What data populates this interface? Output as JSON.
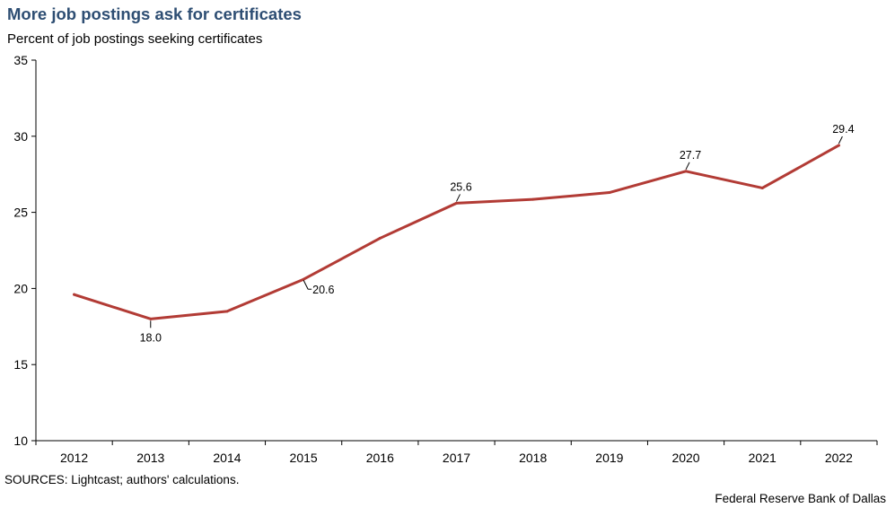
{
  "header": {
    "title": "More job postings ask for certificates",
    "subtitle": "Percent of job postings seeking certificates"
  },
  "footer": {
    "source": "SOURCES: Lightcast; authors' calculations.",
    "credit": "Federal Reserve Bank of Dallas"
  },
  "chart_data": {
    "type": "line",
    "title": "More job postings ask for certificates",
    "ylabel": "Percent of job postings seeking certificates",
    "xlabel": "",
    "categories": [
      "2012",
      "2013",
      "2014",
      "2015",
      "2016",
      "2017",
      "2018",
      "2019",
      "2020",
      "2021",
      "2022"
    ],
    "series": [
      {
        "values": [
          19.6,
          18.0,
          18.5,
          20.6,
          23.3,
          25.6,
          25.85,
          26.3,
          27.7,
          26.6,
          29.4
        ],
        "color": "#b23b35"
      }
    ],
    "ylim": [
      10,
      35
    ],
    "yticks": [
      10,
      15,
      20,
      25,
      30,
      35
    ],
    "grid": false,
    "legend": "none",
    "annotations": [
      {
        "index": 1,
        "label": "18.0",
        "position": "below"
      },
      {
        "index": 3,
        "label": "20.6",
        "position": "right"
      },
      {
        "index": 5,
        "label": "25.6",
        "position": "above"
      },
      {
        "index": 8,
        "label": "27.7",
        "position": "above"
      },
      {
        "index": 10,
        "label": "29.4",
        "position": "above"
      }
    ]
  }
}
